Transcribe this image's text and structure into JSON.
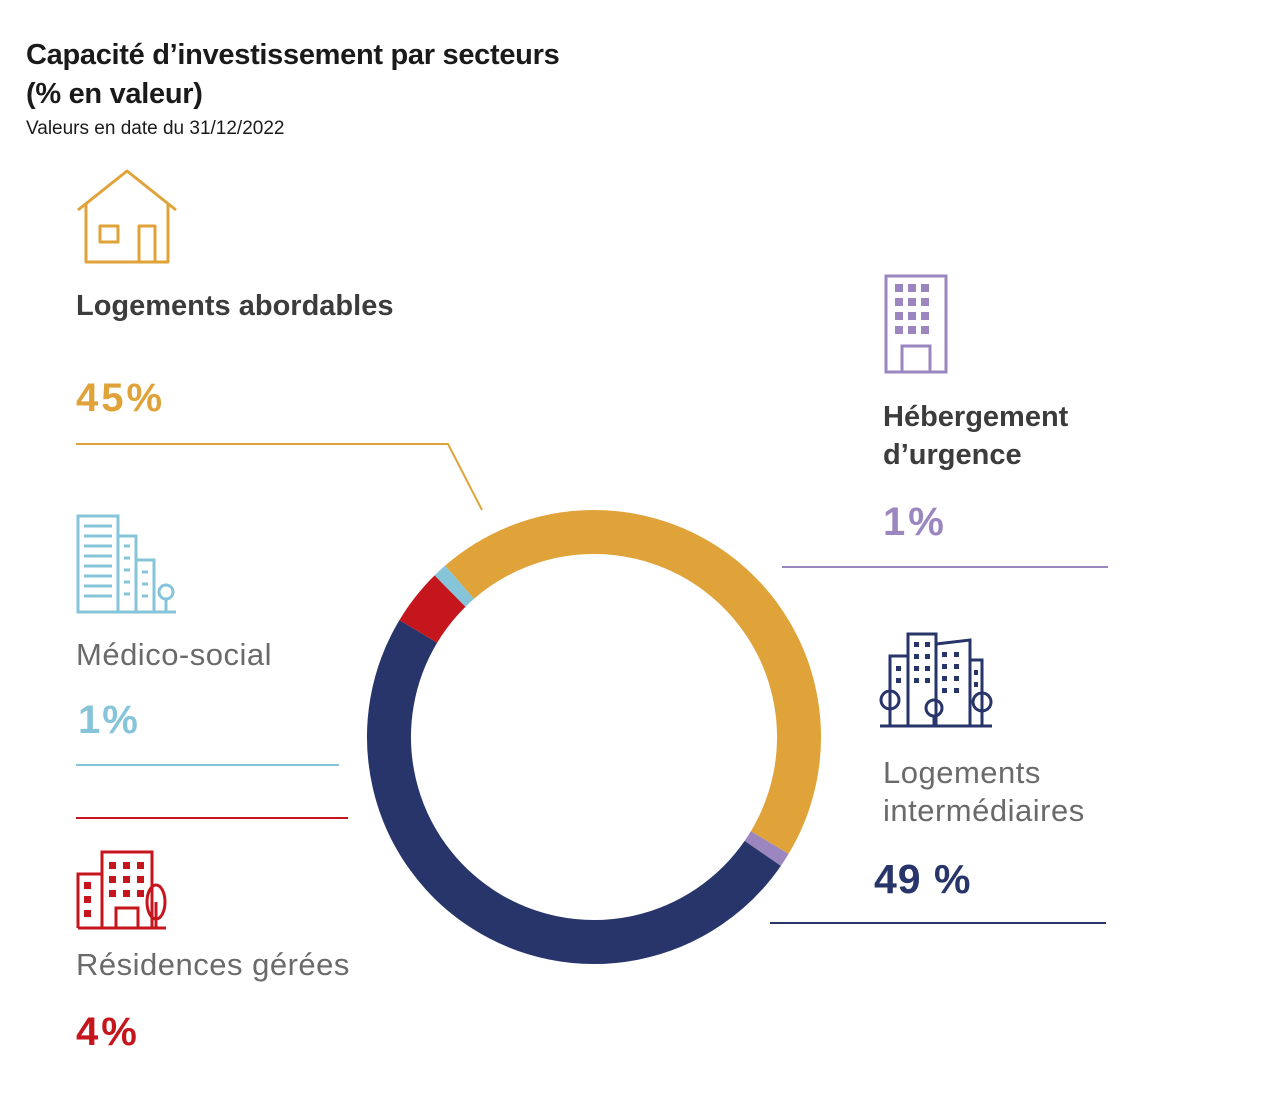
{
  "title_line1": "Capacité d’investissement par secteurs",
  "title_line2": "(% en valeur)",
  "subtitle": "Valeurs en date du 31/12/2022",
  "colors": {
    "logements_abordables": "#e0a33a",
    "hebergement_urgence": "#9b86c0",
    "logements_intermediaires": "#27356a",
    "residences_gerees": "#c4161c",
    "medico_social": "#86c4d9"
  },
  "labels": {
    "logements_abordables": "Logements abordables",
    "hebergement_urgence_1": "Hébergement",
    "hebergement_urgence_2": "d’urgence",
    "medico_social": "Médico-social",
    "logements_intermediaires_1": "Logements",
    "logements_intermediaires_2": "intermédiaires",
    "residences_gerees": "Résidences gérées"
  },
  "percent_labels": {
    "logements_abordables": "45%",
    "hebergement_urgence": "1%",
    "medico_social": "1%",
    "logements_intermediaires": "49 %",
    "residences_gerees": "4%"
  },
  "icons": {
    "logements_abordables": "house-icon",
    "hebergement_urgence": "office-building-icon",
    "medico_social": "tower-buildings-icon",
    "logements_intermediaires": "city-buildings-icon",
    "residences_gerees": "residence-building-icon"
  },
  "chart_data": {
    "type": "pie",
    "style": "donut",
    "title": "Capacité d’investissement par secteurs (% en valeur)",
    "subtitle": "Valeurs en date du 31/12/2022",
    "unit": "%",
    "slices": [
      {
        "name": "Logements abordables",
        "value": 45,
        "color": "#e0a33a"
      },
      {
        "name": "Hébergement d’urgence",
        "value": 1,
        "color": "#9b86c0"
      },
      {
        "name": "Logements intermédiaires",
        "value": 49,
        "color": "#27356a"
      },
      {
        "name": "Résidences gérées",
        "value": 4,
        "color": "#c4161c"
      },
      {
        "name": "Médico-social",
        "value": 1,
        "color": "#86c4d9"
      }
    ]
  }
}
